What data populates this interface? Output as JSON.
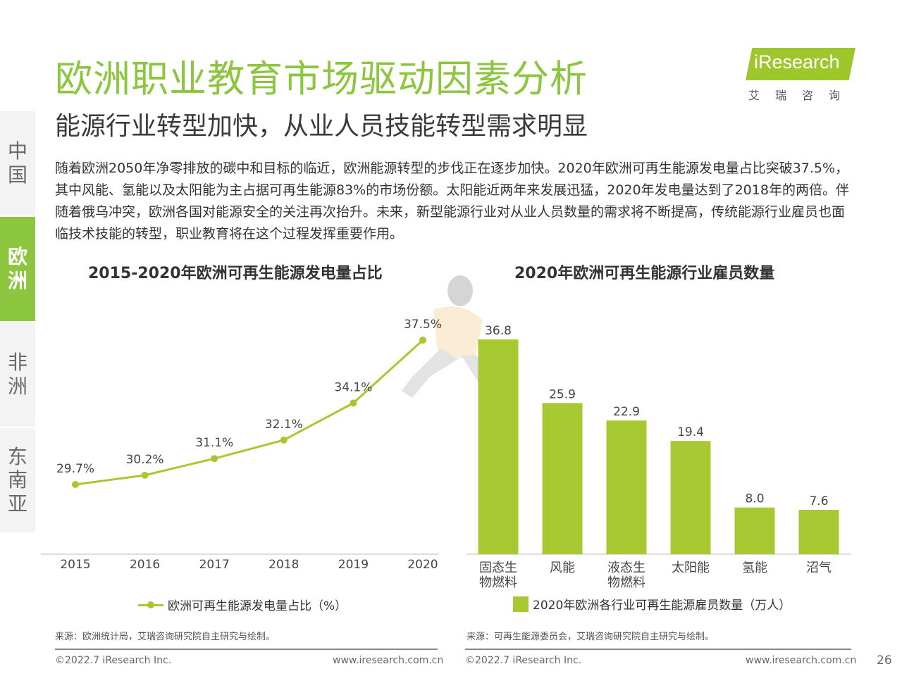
{
  "title": "欧洲职业教育市场驱动因素分析",
  "subtitle": "能源行业转型加快，从业人员技能转型需求明显",
  "logo": {
    "name": "iResearch",
    "sub": "艾瑞咨询"
  },
  "side_tabs": [
    {
      "label": "中国",
      "active": false
    },
    {
      "label": "欧洲",
      "active": true
    },
    {
      "label": "非洲",
      "active": false
    },
    {
      "label": "东南亚",
      "active": false
    }
  ],
  "intro": "随着欧洲2050年净零排放的碳中和目标的临近，欧洲能源转型的步伐正在逐步加快。2020年欧洲可再生能源发电量占比突破37.5%，其中风能、氢能以及太阳能为主占据可再生能源83%的市场份额。太阳能近两年来发展迅猛，2020年发电量达到了2018年的两倍。伴随着俄乌冲突，欧洲各国对能源安全的关注再次抬升。未来，新型能源行业对从业人员数量的需求将不断提高，传统能源行业雇员也面临技术技能的转型，职业教育将在这个过程发挥重要作用。",
  "colors": {
    "accent": "#8cc63e",
    "series": "#a8c832"
  },
  "chart_data": [
    {
      "type": "line",
      "title": "2015-2020年欧洲可再生能源发电量占比",
      "x": [
        "2015",
        "2016",
        "2017",
        "2018",
        "2019",
        "2020"
      ],
      "series": [
        {
          "name": "欧洲可再生能源发电量占比（%）",
          "values": [
            29.7,
            30.2,
            31.1,
            32.1,
            34.1,
            37.5
          ]
        }
      ],
      "data_labels": [
        "29.7%",
        "30.2%",
        "31.1%",
        "32.1%",
        "34.1%",
        "37.5%"
      ],
      "grid": false,
      "legend": "bottom"
    },
    {
      "type": "bar",
      "title": "2020年欧洲可再生能源行业雇员数量",
      "categories": [
        "固态生物燃料",
        "风能",
        "液态生物燃料",
        "太阳能",
        "氢能",
        "沼气"
      ],
      "series": [
        {
          "name": "2020年欧洲各行业可再生能源雇员数量（万人）",
          "values": [
            36.8,
            25.9,
            22.9,
            19.4,
            8.0,
            7.6
          ]
        }
      ],
      "data_labels": [
        "36.8",
        "25.9",
        "22.9",
        "19.4",
        "8.0",
        "7.6"
      ],
      "ylim": [
        0,
        36.8
      ],
      "grid": false,
      "legend": "bottom"
    }
  ],
  "sources": {
    "left": "来源：欧洲统计局，艾瑞咨询研究院自主研究与绘制。",
    "right": "来源：可再生能源委员会，艾瑞咨询研究院自主研究与绘制。"
  },
  "footer": {
    "copyright": "©2022.7 iResearch Inc.",
    "url": "www.iresearch.com.cn",
    "page": "26"
  }
}
